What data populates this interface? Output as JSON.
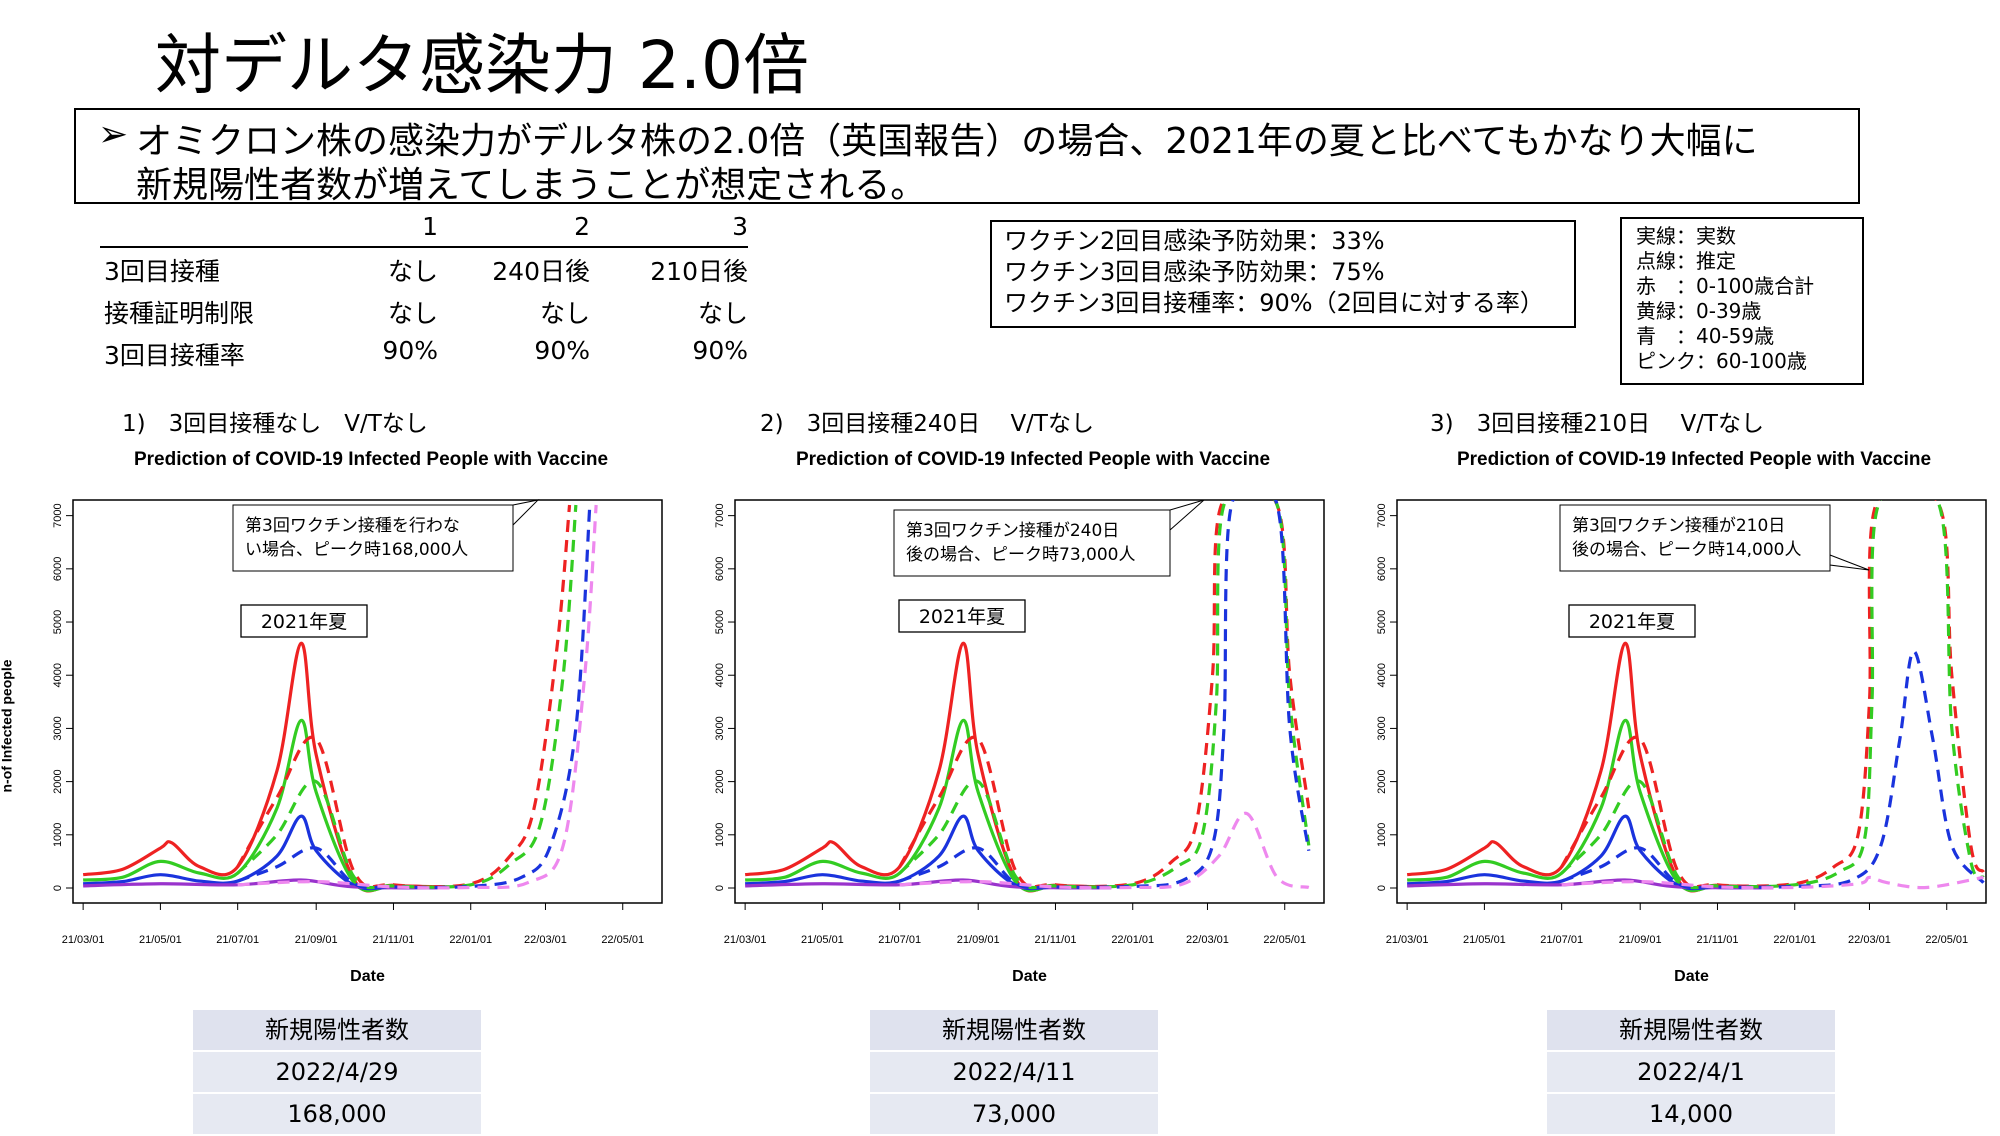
{
  "title": "対デルタ感染力 2.0倍",
  "bullet": {
    "arrow": "➢",
    "line1": "オミクロン株の感染力がデルタ株の2.0倍（英国報告）の場合、2021年の夏と比べてもかなり大幅に",
    "line2": "新規陽性者数が増えてしまうことが想定される。"
  },
  "scenario_table": {
    "header": [
      "",
      "1",
      "2",
      "3"
    ],
    "rows": [
      [
        "3回目接種",
        "なし",
        "240日後",
        "210日後"
      ],
      [
        "接種証明制限",
        "なし",
        "なし",
        "なし"
      ],
      [
        "3回目接種率",
        "90%",
        "90%",
        "90%"
      ]
    ]
  },
  "vaccine_box": {
    "line1": "ワクチン2回目感染予防効果：33%",
    "line2": "ワクチン3回目感染予防効果：75%",
    "line3": "ワクチン3回目接種率：90%（2回目に対する率）"
  },
  "legend_box": {
    "line1": "実線：実数",
    "line2": "点線：推定",
    "line3": "赤　：0-100歳合計",
    "line4": "黄緑：0-39歳",
    "line5": "青　：40-59歳",
    "line6": "ピンク：60-100歳"
  },
  "colors": {
    "red": "#ee2222",
    "green": "#33cc22",
    "blue": "#1a33dd",
    "pink": "#ee88ee",
    "purple": "#9933cc"
  },
  "panels": [
    {
      "label": "1)　3回目接種なし　V/Tなし",
      "callout": [
        "第3回ワクチン接種を行わな",
        "い場合、ピーク時168,000人"
      ],
      "summer": "2021年夏",
      "summary": {
        "header": "新規陽性者数",
        "date": "2022/4/29",
        "value": "168,000"
      }
    },
    {
      "label": "2)　3回目接種240日　 V/Tなし",
      "callout": [
        "第3回ワクチン接種が240日",
        "後の場合、ピーク時73,000人"
      ],
      "summer": "2021年夏",
      "summary": {
        "header": "新規陽性者数",
        "date": "2022/4/11",
        "value": "73,000"
      }
    },
    {
      "label": "3)　3回目接種210日　 V/Tなし",
      "callout": [
        "第3回ワクチン接種が210日",
        "後の場合、ピーク時14,000人"
      ],
      "summer": "2021年夏",
      "summary": {
        "header": "新規陽性者数",
        "date": "2022/4/1",
        "value": "14,000"
      }
    }
  ],
  "chart_data": [
    {
      "type": "line",
      "title": "Prediction of COVID-19 Infected People with Vaccine",
      "xlabel": "Date",
      "ylabel": "n-of Infected people",
      "x_ticks": [
        "21/03/01",
        "21/05/01",
        "21/07/01",
        "21/09/01",
        "21/11/01",
        "22/01/01",
        "22/03/01",
        "22/05/01"
      ],
      "y_ticks": [
        0,
        1000,
        2000,
        3000,
        4000,
        5000,
        6000,
        7000
      ],
      "ylim": [
        0,
        7200
      ],
      "series": [
        {
          "color": "red",
          "style": "solid",
          "x": [
            "21/03/01",
            "21/04/01",
            "21/05/01",
            "21/05/10",
            "21/06/01",
            "21/07/01",
            "21/08/01",
            "21/08/20",
            "21/09/01",
            "21/10/01",
            "21/11/01",
            "21/12/15"
          ],
          "y": [
            250,
            350,
            750,
            850,
            400,
            400,
            2200,
            4600,
            2500,
            150,
            50,
            20
          ]
        },
        {
          "color": "green",
          "style": "solid",
          "x": [
            "21/03/01",
            "21/04/01",
            "21/05/01",
            "21/06/01",
            "21/07/01",
            "21/08/01",
            "21/08/20",
            "21/09/01",
            "21/10/01",
            "21/11/01",
            "21/12/15"
          ],
          "y": [
            150,
            200,
            500,
            280,
            280,
            1500,
            3150,
            1800,
            100,
            30,
            10
          ]
        },
        {
          "color": "blue",
          "style": "solid",
          "x": [
            "21/03/01",
            "21/04/01",
            "21/05/01",
            "21/06/01",
            "21/07/01",
            "21/08/01",
            "21/08/20",
            "21/09/01",
            "21/10/01",
            "21/11/01",
            "21/12/15"
          ],
          "y": [
            80,
            120,
            250,
            130,
            130,
            600,
            1350,
            700,
            50,
            10,
            5
          ]
        },
        {
          "color": "purple",
          "style": "solid",
          "x": [
            "21/03/01",
            "21/05/01",
            "21/07/01",
            "21/08/20",
            "21/10/01",
            "21/12/15"
          ],
          "y": [
            40,
            80,
            60,
            150,
            20,
            5
          ]
        },
        {
          "color": "red",
          "style": "dashed",
          "x": [
            "21/07/01",
            "21/08/01",
            "21/09/01",
            "21/10/01",
            "21/11/01",
            "22/01/01",
            "22/02/01",
            "22/02/20",
            "22/03/10",
            "22/03/20"
          ],
          "y": [
            400,
            1700,
            2800,
            300,
            60,
            80,
            600,
            1500,
            4500,
            7200
          ]
        },
        {
          "color": "green",
          "style": "dashed",
          "x": [
            "21/07/01",
            "21/08/01",
            "21/09/01",
            "21/10/01",
            "21/11/01",
            "22/01/01",
            "22/02/01",
            "22/02/25",
            "22/03/15",
            "22/03/25"
          ],
          "y": [
            280,
            1000,
            2000,
            200,
            40,
            60,
            450,
            1200,
            4000,
            7200
          ]
        },
        {
          "color": "blue",
          "style": "dashed",
          "x": [
            "21/07/01",
            "21/08/01",
            "21/09/01",
            "21/10/01",
            "21/11/01",
            "22/01/01",
            "22/02/10",
            "22/03/05",
            "22/03/25",
            "22/04/05"
          ],
          "y": [
            130,
            400,
            750,
            80,
            20,
            30,
            200,
            800,
            3000,
            7200
          ]
        },
        {
          "color": "pink",
          "style": "dashed",
          "x": [
            "21/07/01",
            "21/09/01",
            "21/11/01",
            "22/01/01",
            "22/02/15",
            "22/03/15",
            "22/04/01",
            "22/04/10"
          ],
          "y": [
            60,
            120,
            20,
            10,
            100,
            800,
            4000,
            7200
          ]
        }
      ]
    },
    {
      "type": "line",
      "title": "Prediction of COVID-19 Infected People with Vaccine",
      "xlabel": "Date",
      "ylabel": "",
      "x_ticks": [
        "21/03/01",
        "21/05/01",
        "21/07/01",
        "21/09/01",
        "21/11/01",
        "22/01/01",
        "22/03/01",
        "22/05/01"
      ],
      "y_ticks": [
        0,
        1000,
        2000,
        3000,
        4000,
        5000,
        6000,
        7000
      ],
      "ylim": [
        0,
        7200
      ],
      "series": [
        {
          "color": "red",
          "style": "solid",
          "x": [
            "21/03/01",
            "21/04/01",
            "21/05/01",
            "21/05/10",
            "21/06/01",
            "21/07/01",
            "21/08/01",
            "21/08/20",
            "21/09/01",
            "21/10/01",
            "21/11/01",
            "21/12/15"
          ],
          "y": [
            250,
            350,
            750,
            850,
            400,
            400,
            2200,
            4600,
            2500,
            150,
            50,
            20
          ]
        },
        {
          "color": "green",
          "style": "solid",
          "x": [
            "21/03/01",
            "21/04/01",
            "21/05/01",
            "21/06/01",
            "21/07/01",
            "21/08/01",
            "21/08/20",
            "21/09/01",
            "21/10/01",
            "21/11/01",
            "21/12/15"
          ],
          "y": [
            150,
            200,
            500,
            280,
            280,
            1500,
            3150,
            1800,
            100,
            30,
            10
          ]
        },
        {
          "color": "blue",
          "style": "solid",
          "x": [
            "21/03/01",
            "21/04/01",
            "21/05/01",
            "21/06/01",
            "21/07/01",
            "21/08/01",
            "21/08/20",
            "21/09/01",
            "21/10/01",
            "21/11/01",
            "21/12/15"
          ],
          "y": [
            80,
            120,
            250,
            130,
            130,
            600,
            1350,
            700,
            50,
            10,
            5
          ]
        },
        {
          "color": "purple",
          "style": "solid",
          "x": [
            "21/03/01",
            "21/05/01",
            "21/07/01",
            "21/08/20",
            "21/10/01",
            "21/12/15"
          ],
          "y": [
            40,
            80,
            60,
            150,
            20,
            5
          ]
        },
        {
          "color": "red",
          "style": "dashed",
          "x": [
            "21/07/01",
            "21/08/01",
            "21/09/01",
            "21/10/01",
            "21/11/01",
            "22/01/01",
            "22/02/01",
            "22/02/20",
            "22/03/05",
            "22/03/12",
            "22/04/25",
            "22/05/05",
            "22/05/20"
          ],
          "y": [
            400,
            1700,
            2800,
            300,
            60,
            80,
            500,
            1200,
            4000,
            7200,
            7200,
            4000,
            1500
          ]
        },
        {
          "color": "green",
          "style": "dashed",
          "x": [
            "21/07/01",
            "21/08/01",
            "21/09/01",
            "21/10/01",
            "21/11/01",
            "22/01/01",
            "22/02/05",
            "22/02/25",
            "22/03/08",
            "22/03/14",
            "22/04/25",
            "22/05/05",
            "22/05/20"
          ],
          "y": [
            280,
            1000,
            2000,
            200,
            40,
            60,
            400,
            1000,
            3500,
            7200,
            7200,
            3500,
            800
          ]
        },
        {
          "color": "blue",
          "style": "dashed",
          "x": [
            "21/07/01",
            "21/08/01",
            "21/09/01",
            "21/10/01",
            "21/11/01",
            "22/01/01",
            "22/02/10",
            "22/03/05",
            "22/03/14",
            "22/03/20",
            "22/04/25",
            "22/05/05",
            "22/05/20"
          ],
          "y": [
            130,
            400,
            750,
            80,
            20,
            30,
            150,
            800,
            3000,
            7200,
            7200,
            3000,
            700
          ]
        },
        {
          "color": "pink",
          "style": "dashed",
          "x": [
            "21/07/01",
            "21/09/01",
            "21/11/01",
            "22/01/01",
            "22/02/10",
            "22/03/10",
            "22/04/01",
            "22/04/25",
            "22/05/20"
          ],
          "y": [
            60,
            120,
            20,
            10,
            80,
            600,
            1400,
            200,
            10
          ]
        }
      ]
    },
    {
      "type": "line",
      "title": "Prediction of COVID-19 Infected People with Vaccine",
      "xlabel": "Date",
      "ylabel": "",
      "x_ticks": [
        "21/03/01",
        "21/05/01",
        "21/07/01",
        "21/09/01",
        "21/11/01",
        "22/01/01",
        "22/03/01",
        "22/05/01"
      ],
      "y_ticks": [
        0,
        1000,
        2000,
        3000,
        4000,
        5000,
        6000,
        7000
      ],
      "ylim": [
        0,
        7200
      ],
      "series": [
        {
          "color": "red",
          "style": "solid",
          "x": [
            "21/03/01",
            "21/04/01",
            "21/05/01",
            "21/05/10",
            "21/06/01",
            "21/07/01",
            "21/08/01",
            "21/08/20",
            "21/09/01",
            "21/10/01",
            "21/11/01",
            "21/12/15"
          ],
          "y": [
            250,
            350,
            750,
            850,
            400,
            400,
            2200,
            4600,
            2500,
            150,
            50,
            20
          ]
        },
        {
          "color": "green",
          "style": "solid",
          "x": [
            "21/03/01",
            "21/04/01",
            "21/05/01",
            "21/06/01",
            "21/07/01",
            "21/08/01",
            "21/08/20",
            "21/09/01",
            "21/10/01",
            "21/11/01",
            "21/12/15"
          ],
          "y": [
            150,
            200,
            500,
            280,
            280,
            1500,
            3150,
            1800,
            100,
            30,
            10
          ]
        },
        {
          "color": "blue",
          "style": "solid",
          "x": [
            "21/03/01",
            "21/04/01",
            "21/05/01",
            "21/06/01",
            "21/07/01",
            "21/08/01",
            "21/08/20",
            "21/09/01",
            "21/10/01",
            "21/11/01",
            "21/12/15"
          ],
          "y": [
            80,
            120,
            250,
            130,
            130,
            600,
            1350,
            700,
            50,
            10,
            5
          ]
        },
        {
          "color": "purple",
          "style": "solid",
          "x": [
            "21/03/01",
            "21/05/01",
            "21/07/01",
            "21/08/20",
            "21/10/01",
            "21/12/15"
          ],
          "y": [
            40,
            80,
            60,
            150,
            20,
            5
          ]
        },
        {
          "color": "red",
          "style": "dashed",
          "x": [
            "21/07/01",
            "21/08/01",
            "21/09/01",
            "21/10/01",
            "21/11/01",
            "22/01/01",
            "22/02/01",
            "22/02/20",
            "22/03/01",
            "22/03/06",
            "22/04/25",
            "22/05/05",
            "22/05/20",
            "22/05/30"
          ],
          "y": [
            400,
            1700,
            2800,
            300,
            60,
            80,
            400,
            1000,
            3500,
            7200,
            7200,
            4000,
            800,
            300
          ]
        },
        {
          "color": "green",
          "style": "dashed",
          "x": [
            "21/07/01",
            "21/08/01",
            "21/09/01",
            "21/10/01",
            "21/11/01",
            "22/01/01",
            "22/02/05",
            "22/02/25",
            "22/03/03",
            "22/03/08",
            "22/04/25",
            "22/05/05",
            "22/05/20",
            "22/05/30"
          ],
          "y": [
            280,
            1000,
            2000,
            200,
            40,
            60,
            300,
            900,
            3500,
            7200,
            7200,
            3000,
            500,
            200
          ]
        },
        {
          "color": "blue",
          "style": "dashed",
          "x": [
            "21/07/01",
            "21/08/01",
            "21/09/01",
            "21/10/01",
            "21/11/01",
            "22/01/01",
            "22/02/15",
            "22/03/10",
            "22/03/25",
            "22/04/05",
            "22/04/20",
            "22/05/05",
            "22/05/30"
          ],
          "y": [
            130,
            400,
            750,
            80,
            20,
            30,
            150,
            800,
            2800,
            4450,
            2800,
            800,
            100
          ]
        },
        {
          "color": "pink",
          "style": "dashed",
          "x": [
            "21/07/01",
            "21/09/01",
            "21/11/01",
            "22/01/01",
            "22/02/20",
            "22/03/01",
            "22/03/15",
            "22/04/15",
            "22/05/30"
          ],
          "y": [
            60,
            120,
            20,
            10,
            80,
            200,
            100,
            10,
            200
          ]
        }
      ]
    }
  ]
}
